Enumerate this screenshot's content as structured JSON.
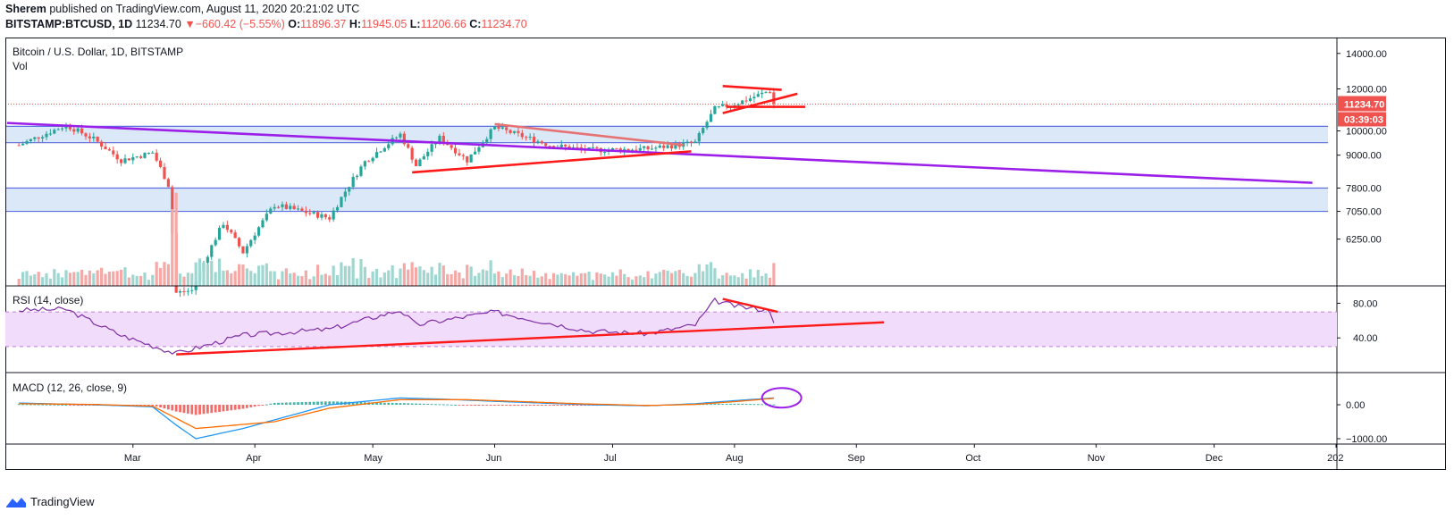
{
  "header": {
    "author": "Sherem",
    "published_text": "published on TradingView.com, August 11, 2020 20:21:02 UTC",
    "symbol": "BITSTAMP:BTCUSD, 1D",
    "last": "11234.70",
    "change_arrow": "▼",
    "change": "−660.42 (−5.55%)",
    "o_label": "O:",
    "o": "11896.37",
    "h_label": "H:",
    "h": "11945.05",
    "l_label": "L:",
    "l": "11206.66",
    "c_label": "C:",
    "c": "11234.70"
  },
  "legend": {
    "title": "Bitcoin / U.S. Dollar, 1D, BITSTAMP",
    "vol": "Vol",
    "rsi": "RSI (14, close)",
    "macd": "MACD (12, 26, close, 9)"
  },
  "price_badge": {
    "value": "11234.70",
    "countdown": "03:39:03"
  },
  "footer": {
    "brand": "TradingView"
  },
  "colors": {
    "up": "#26a69a",
    "down": "#ef5350",
    "trend_purple": "#9b1fe8",
    "trend_red": "#ff1a1a",
    "zone_fill": "#dbe8f8",
    "zone_line": "#5b6ee1",
    "rsi_band": "#f1dcfb",
    "rsi_line": "#7e2ea3",
    "macd_line": "#2196f3",
    "signal_line": "#ff6d00"
  },
  "chart_data": {
    "type": "candlestick",
    "price_axis": {
      "ticks": [
        "6250.00",
        "7050.00",
        "7800.00",
        "9000.00",
        "10000.00",
        "12000.00",
        "14000.00"
      ],
      "scale": "log"
    },
    "time_axis": {
      "ticks": [
        "Mar",
        "Apr",
        "May",
        "Jun",
        "Jul",
        "Aug",
        "Sep",
        "Oct",
        "Nov",
        "Dec",
        "202"
      ]
    },
    "rsi_axis": {
      "ticks": [
        "80.00",
        "40.00"
      ],
      "band": [
        30,
        70
      ]
    },
    "macd_axis": {
      "ticks": [
        "0.00",
        "−1000.00"
      ]
    },
    "price_path": [
      [
        "2020-02-01",
        9400
      ],
      [
        "2020-02-13",
        10250
      ],
      [
        "2020-02-20",
        9650
      ],
      [
        "2020-02-27",
        8800
      ],
      [
        "2020-03-06",
        9100
      ],
      [
        "2020-03-10",
        7900
      ],
      [
        "2020-03-12",
        4950
      ],
      [
        "2020-03-16",
        5000
      ],
      [
        "2020-03-24",
        6700
      ],
      [
        "2020-03-29",
        5900
      ],
      [
        "2020-04-06",
        7250
      ],
      [
        "2020-04-20",
        6850
      ],
      [
        "2020-04-29",
        8750
      ],
      [
        "2020-05-08",
        9850
      ],
      [
        "2020-05-12",
        8600
      ],
      [
        "2020-05-18",
        9700
      ],
      [
        "2020-05-25",
        8800
      ],
      [
        "2020-06-01",
        10150
      ],
      [
        "2020-06-15",
        9400
      ],
      [
        "2020-06-25",
        9200
      ],
      [
        "2020-07-10",
        9250
      ],
      [
        "2020-07-22",
        9500
      ],
      [
        "2020-07-27",
        11000
      ],
      [
        "2020-08-02",
        11300
      ],
      [
        "2020-08-10",
        11900
      ],
      [
        "2020-08-11",
        11234.7
      ]
    ],
    "zones": [
      {
        "low": 9500,
        "high": 10200
      },
      {
        "low": 7050,
        "high": 7800
      }
    ],
    "trendlines": [
      {
        "color": "purple",
        "from": [
          "2020-01-29",
          10350
        ],
        "to": [
          "2020-12-26",
          7980
        ]
      },
      {
        "color": "red",
        "from": [
          "2020-05-11",
          8350
        ],
        "to": [
          "2020-07-21",
          9150
        ]
      },
      {
        "color": "salmon",
        "from": [
          "2020-06-01",
          10300
        ],
        "to": [
          "2020-07-19",
          9400
        ]
      },
      {
        "color": "red",
        "from": [
          "2020-07-29",
          12150
        ],
        "to": [
          "2020-08-13",
          11950
        ]
      },
      {
        "color": "red",
        "from": [
          "2020-07-29",
          10800
        ],
        "to": [
          "2020-08-17",
          11750
        ]
      },
      {
        "color": "red",
        "from": [
          "2020-07-30",
          11100
        ],
        "to": [
          "2020-08-19",
          11100
        ]
      }
    ],
    "rsi_path": [
      [
        "2020-02-01",
        72
      ],
      [
        "2020-02-13",
        73
      ],
      [
        "2020-02-27",
        43
      ],
      [
        "2020-03-12",
        22
      ],
      [
        "2020-03-29",
        43
      ],
      [
        "2020-04-20",
        50
      ],
      [
        "2020-05-08",
        72
      ],
      [
        "2020-05-12",
        55
      ],
      [
        "2020-06-01",
        70
      ],
      [
        "2020-06-25",
        48
      ],
      [
        "2020-07-10",
        45
      ],
      [
        "2020-07-22",
        55
      ],
      [
        "2020-07-27",
        83
      ],
      [
        "2020-08-02",
        76
      ],
      [
        "2020-08-10",
        72
      ],
      [
        "2020-08-11",
        60
      ]
    ],
    "rsi_trendlines": [
      {
        "from": [
          "2020-03-12",
          21
        ],
        "to": [
          "2020-09-08",
          58
        ]
      },
      {
        "from": [
          "2020-07-29",
          85
        ],
        "to": [
          "2020-08-12",
          70
        ]
      }
    ],
    "macd_path": [
      [
        "2020-02-01",
        50
      ],
      [
        "2020-02-20",
        0
      ],
      [
        "2020-03-06",
        -60
      ],
      [
        "2020-03-12",
        -600
      ],
      [
        "2020-03-17",
        -1000
      ],
      [
        "2020-03-29",
        -700
      ],
      [
        "2020-04-20",
        0
      ],
      [
        "2020-05-08",
        200
      ],
      [
        "2020-05-20",
        160
      ],
      [
        "2020-06-01",
        100
      ],
      [
        "2020-06-25",
        0
      ],
      [
        "2020-07-10",
        -30
      ],
      [
        "2020-07-22",
        30
      ],
      [
        "2020-08-02",
        130
      ],
      [
        "2020-08-11",
        200
      ]
    ],
    "signal_path": [
      [
        "2020-02-01",
        30
      ],
      [
        "2020-02-20",
        10
      ],
      [
        "2020-03-06",
        -40
      ],
      [
        "2020-03-17",
        -700
      ],
      [
        "2020-04-06",
        -500
      ],
      [
        "2020-04-20",
        -100
      ],
      [
        "2020-05-08",
        150
      ],
      [
        "2020-05-25",
        150
      ],
      [
        "2020-06-25",
        20
      ],
      [
        "2020-07-10",
        -20
      ],
      [
        "2020-07-22",
        10
      ],
      [
        "2020-08-02",
        100
      ],
      [
        "2020-08-11",
        190
      ]
    ]
  }
}
